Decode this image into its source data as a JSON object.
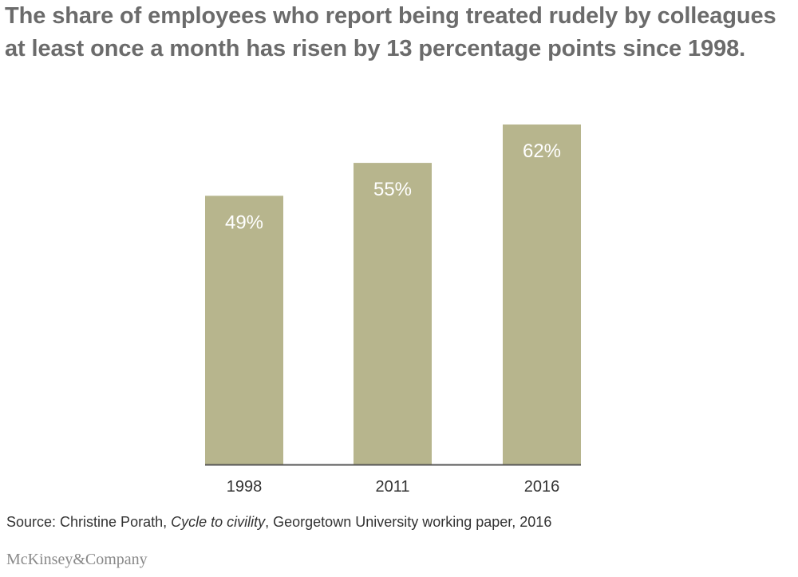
{
  "title": "The share of employees who report being treated rudely by colleagues at least once a month has risen by 13 percentage points since 1998.",
  "source": {
    "prefix": "Source: Christine Porath, ",
    "italic": "Cycle to civility",
    "suffix": ", Georgetown University working paper, 2016"
  },
  "logo": "McKinsey&Company",
  "colors": {
    "bar": "#b7b58d",
    "axis": "#555555"
  },
  "chart_data": {
    "type": "bar",
    "categories": [
      "1998",
      "2011",
      "2016"
    ],
    "values": [
      49,
      55,
      62
    ],
    "value_labels": [
      "49%",
      "55%",
      "62%"
    ],
    "title": "The share of employees who report being treated rudely by colleagues at least once a month has risen by 13 percentage points since 1998.",
    "xlabel": "",
    "ylabel": "",
    "ylim": [
      0,
      62
    ],
    "grid": false,
    "legend": "none"
  }
}
